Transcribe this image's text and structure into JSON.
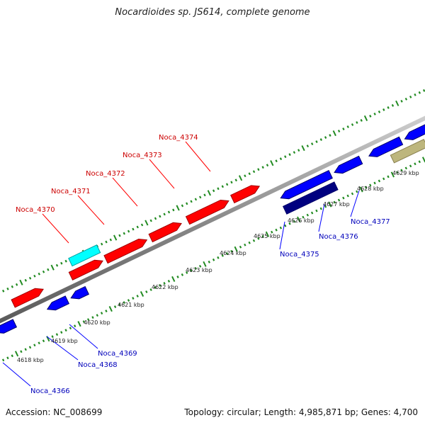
{
  "title": "Nocardioides sp. JS614, complete genome",
  "footer": {
    "accession": "Accession: NC_008699",
    "stats": "Topology: circular; Length: 4,985,871 bp; Genes: 4,700"
  },
  "colors": {
    "forward_gene": "#ff0000",
    "reverse_gene": "#0000ff",
    "dark_gene": "#000080",
    "cyan_gene": "#00ffff",
    "tan_gene": "#bdb67d",
    "ticks": "#228b22",
    "backbone": "#888888",
    "forward_label": "#cc0000",
    "reverse_label": "#0000bb"
  },
  "kbp_ticks": [
    "4618 kbp",
    "4619 kbp",
    "4620 kbp",
    "4621 kbp",
    "4622 kbp",
    "4623 kbp",
    "4624 kbp",
    "4625 kbp",
    "4626 kbp",
    "4627 kbp",
    "4628 kbp",
    "4629 kbp"
  ],
  "forward_labels": [
    "Noca_4370",
    "Noca_4371",
    "Noca_4372",
    "Noca_4373",
    "Noca_4374"
  ],
  "reverse_labels": [
    "Noca_4366",
    "Noca_4368",
    "Noca_4369",
    "Noca_4375",
    "Noca_4376",
    "Noca_4377"
  ]
}
